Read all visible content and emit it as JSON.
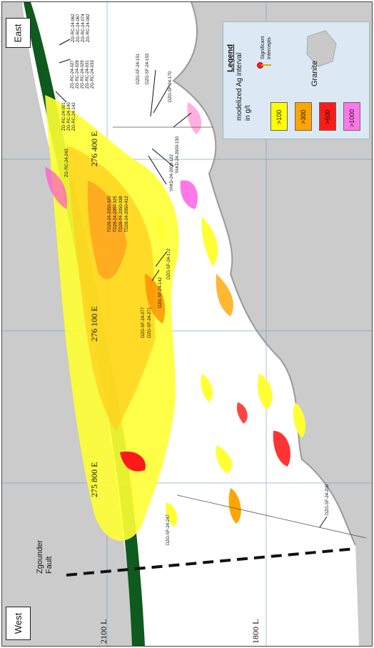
{
  "directions": {
    "east": "East",
    "west": "West"
  },
  "fault": {
    "label_line1": "Zgounder",
    "label_line2": "Fault"
  },
  "grid_labels": {
    "eastings": [
      "276 400 E",
      "276 100 E",
      "275 800 E"
    ],
    "levels": [
      "2100 L",
      "1800 L"
    ]
  },
  "legend": {
    "title": "Legend",
    "subtitle": [
      "modelized Ag interval",
      "in g/t"
    ],
    "intercepts_label": [
      "Significant",
      "Intercepts"
    ],
    "granite_label": "Granite",
    "classes": [
      {
        "label": ">100",
        "color": "#ffff00"
      },
      {
        "label": ">300",
        "color": "#ffa500"
      },
      {
        "label": ">500",
        "color": "#ff1a1a"
      },
      {
        "label": ">1000",
        "color": "#ff77e9"
      }
    ]
  },
  "drillholes": {
    "rc_top": [
      "ZG-RC-24-062",
      "ZG-RC-24-067",
      "ZG-RC-24-074",
      "ZG-RC-24-082"
    ],
    "rc_mid": [
      "ZG-RC-24-027",
      "ZG-RC-24-028",
      "ZG-RC-24-029",
      "ZG-RC-24-031",
      "ZG-RC-24-033"
    ],
    "rc_low": [
      "ZG-RC-24-001",
      "ZG-RC-24-140",
      "ZG-RC-24-142"
    ],
    "rc_243": "ZG-RC-24-243",
    "sf_top": [
      "DZG-SF-24-151",
      "DZG-SF-24-153"
    ],
    "sf_170": "DZG-SF-24-170",
    "yakd": [
      "YAKD-24-2000-122",
      "YAKD-24-2000-130"
    ],
    "td": [
      "TD28-24-2050-320",
      "TD28-24-2050-325",
      "TD28-24-2050-338",
      "TD28-24-2050-412"
    ],
    "sf_172": "DZG-SF-24-172",
    "sf_142": "DZG-SF-24-142",
    "sf_mid": [
      "DZG-SF-24-277",
      "DZG-SF-24-271"
    ],
    "sf_247": "DZG-SF-24-247",
    "sf_200": "DZG-SF-24-200"
  }
}
